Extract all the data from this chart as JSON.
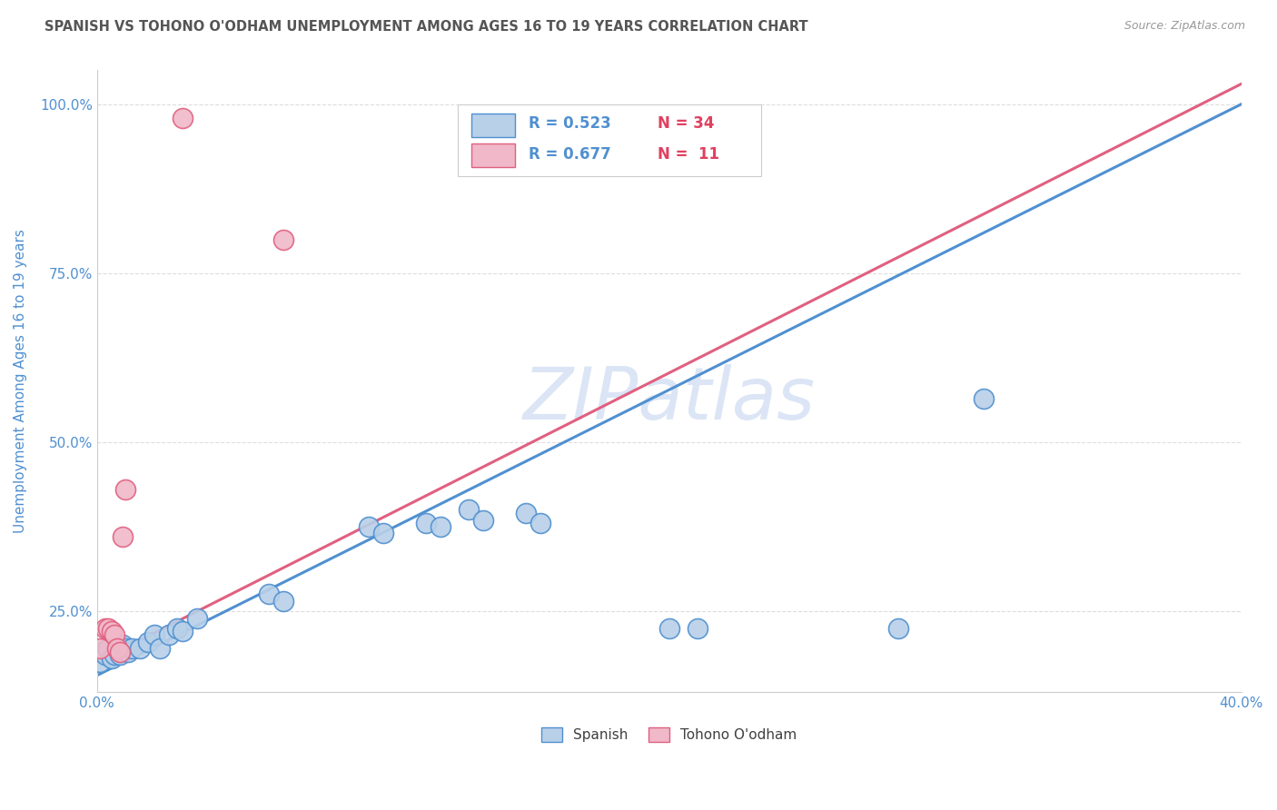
{
  "title": "SPANISH VS TOHONO O'ODHAM UNEMPLOYMENT AMONG AGES 16 TO 19 YEARS CORRELATION CHART",
  "source": "Source: ZipAtlas.com",
  "ylabel": "Unemployment Among Ages 16 to 19 years",
  "xlim": [
    0.0,
    0.4
  ],
  "ylim": [
    0.13,
    1.05
  ],
  "xticks": [
    0.0,
    0.04,
    0.08,
    0.12,
    0.16,
    0.2,
    0.24,
    0.28,
    0.32,
    0.36,
    0.4
  ],
  "xtick_labels": [
    "0.0%",
    "",
    "",
    "",
    "",
    "",
    "",
    "",
    "",
    "",
    "40.0%"
  ],
  "yticks": [
    0.25,
    0.5,
    0.75,
    1.0
  ],
  "ytick_labels": [
    "25.0%",
    "50.0%",
    "75.0%",
    "100.0%"
  ],
  "legend_r_spanish": "0.523",
  "legend_n_spanish": "34",
  "legend_r_tohono": "0.677",
  "legend_n_tohono": "11",
  "spanish_color": "#b8d0e8",
  "tohono_color": "#f0b8c8",
  "trend_spanish_color": "#5090d0",
  "trend_tohono_color": "#e06080",
  "background_color": "#ffffff",
  "grid_color": "#dddddd",
  "title_color": "#555555",
  "axis_label_color": "#5090d0",
  "legend_r_color": "#5090d0",
  "legend_n_color": "#e04060",
  "spanish_x": [
    0.001,
    0.002,
    0.003,
    0.004,
    0.005,
    0.006,
    0.007,
    0.008,
    0.009,
    0.01,
    0.011,
    0.012,
    0.015,
    0.018,
    0.02,
    0.022,
    0.025,
    0.028,
    0.03,
    0.035,
    0.06,
    0.065,
    0.095,
    0.1,
    0.115,
    0.12,
    0.13,
    0.135,
    0.15,
    0.155,
    0.2,
    0.21,
    0.28,
    0.31
  ],
  "spanish_y": [
    0.175,
    0.19,
    0.185,
    0.195,
    0.18,
    0.185,
    0.195,
    0.185,
    0.2,
    0.195,
    0.19,
    0.195,
    0.195,
    0.205,
    0.215,
    0.195,
    0.215,
    0.225,
    0.22,
    0.24,
    0.275,
    0.265,
    0.375,
    0.365,
    0.38,
    0.375,
    0.4,
    0.385,
    0.395,
    0.38,
    0.225,
    0.225,
    0.225,
    0.565
  ],
  "tohono_x": [
    0.001,
    0.003,
    0.004,
    0.005,
    0.006,
    0.007,
    0.008,
    0.009,
    0.01,
    0.03,
    0.065
  ],
  "tohono_y": [
    0.195,
    0.225,
    0.225,
    0.22,
    0.215,
    0.195,
    0.19,
    0.36,
    0.43,
    0.98,
    0.8
  ],
  "trend_spanish_x0": 0.0,
  "trend_spanish_x1": 0.4,
  "trend_spanish_y0": 0.155,
  "trend_spanish_y1": 1.0,
  "trend_tohono_x0": 0.0,
  "trend_tohono_x1": 0.4,
  "trend_tohono_y0": 0.175,
  "trend_tohono_y1": 1.03,
  "watermark": "ZIPatlas",
  "watermark_color": "#c8d8f0"
}
